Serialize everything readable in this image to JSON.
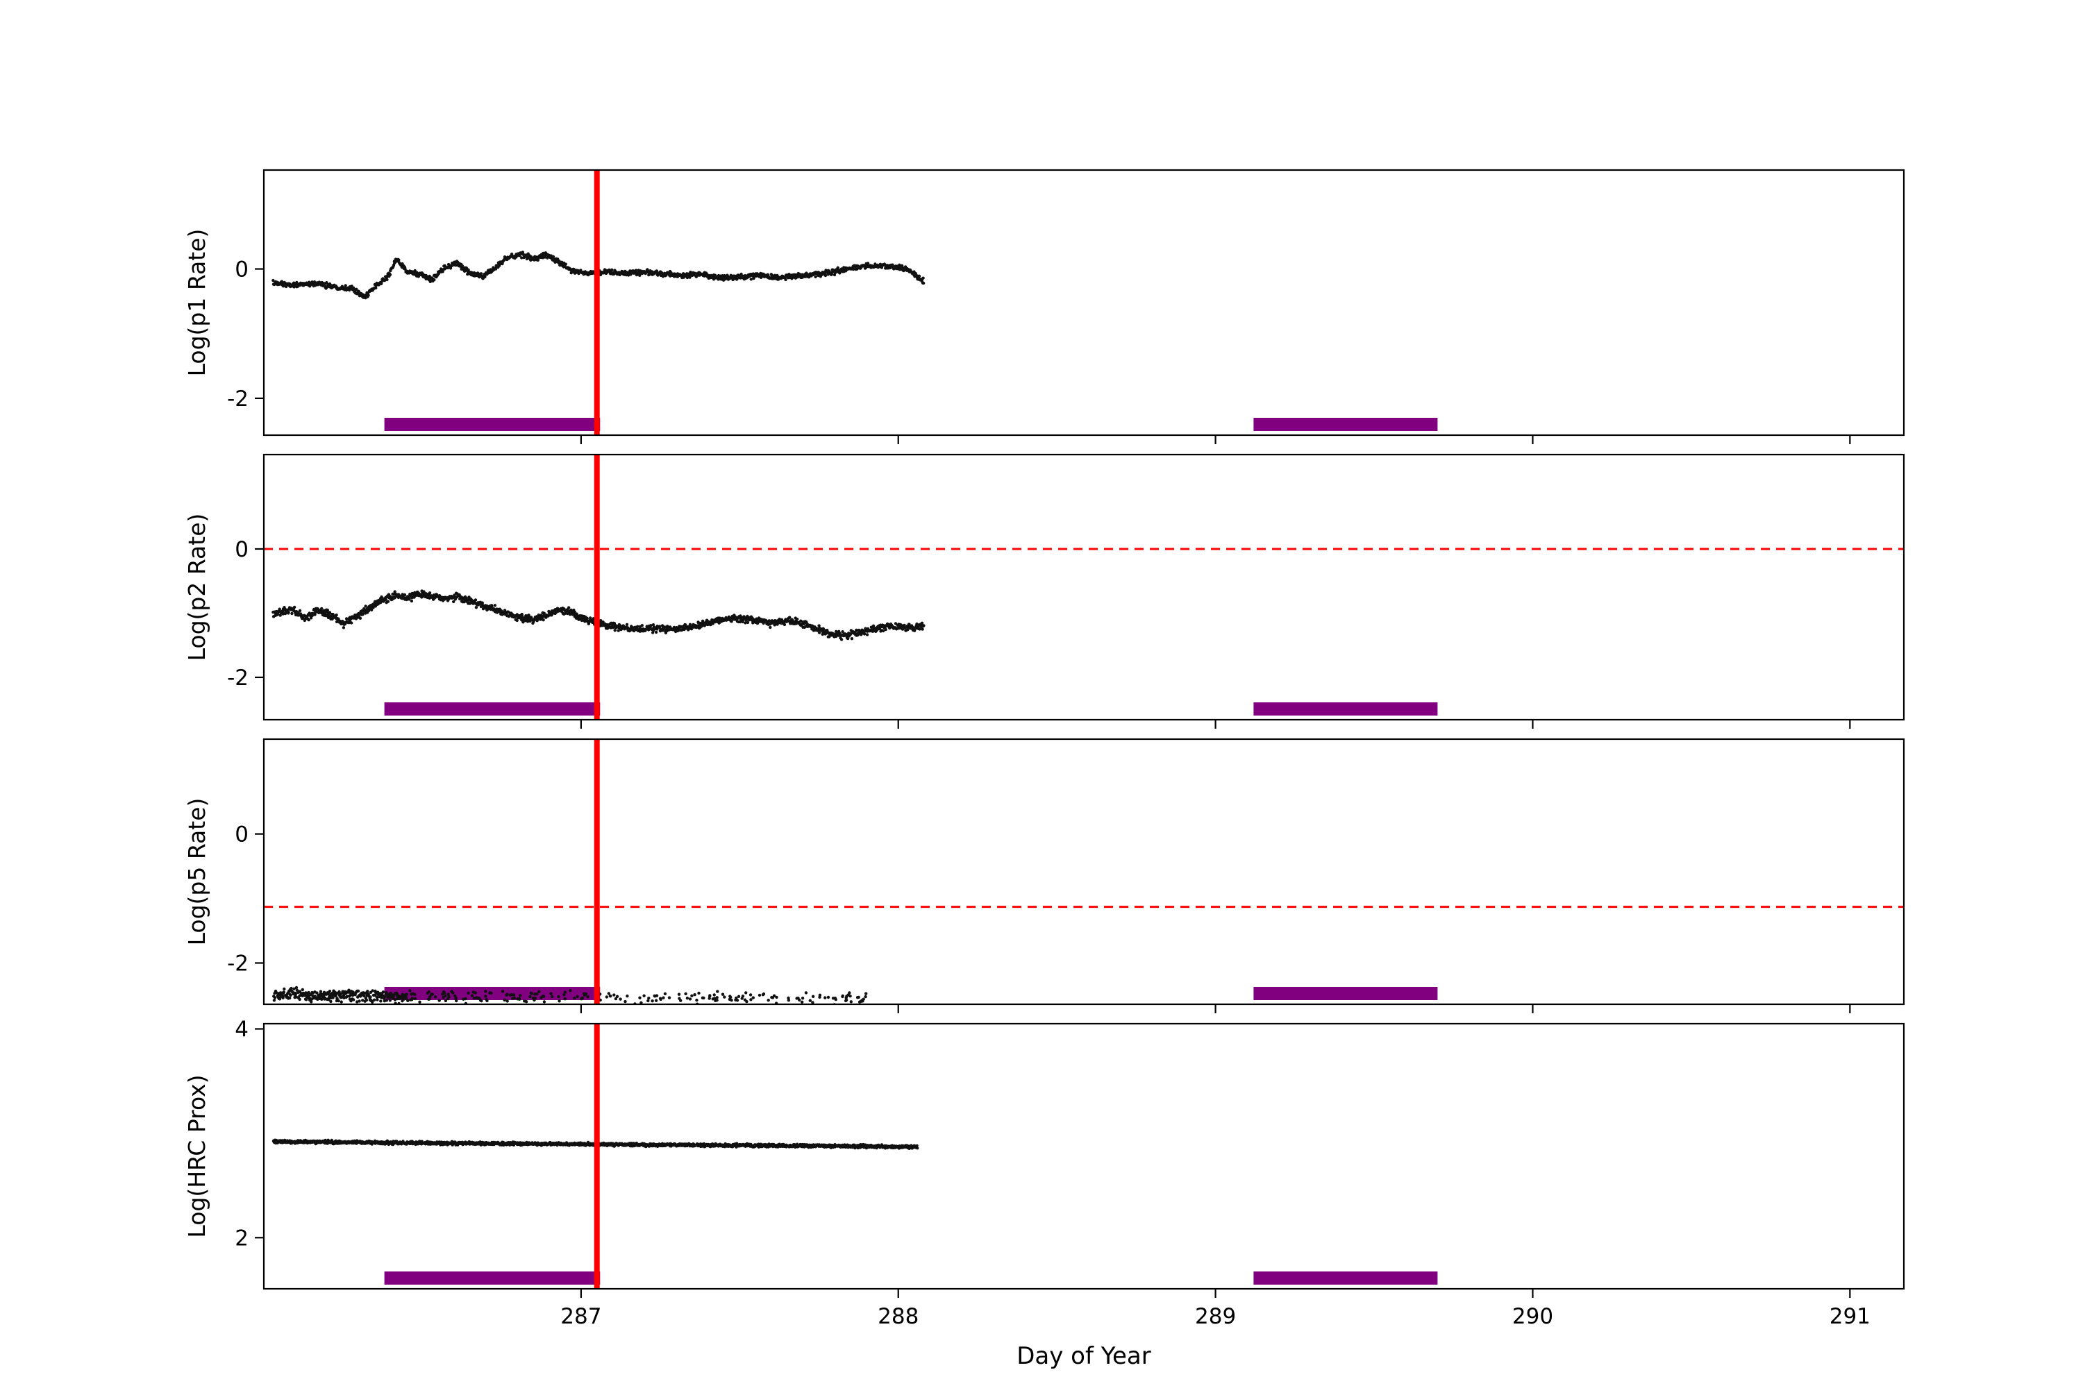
{
  "chart_data": {
    "type": "scatter",
    "title": "",
    "xlabel": "Day of Year",
    "x_range": [
      286.0,
      291.17
    ],
    "x_ticks": [
      287,
      288,
      289,
      290,
      291
    ],
    "grid": false,
    "legend": "none",
    "colors": {
      "data": "#111111",
      "event_line": "#ff0000",
      "threshold_line": "#ff0000",
      "band": "#800080",
      "frame": "#000000"
    },
    "vline": {
      "x": 287.05
    },
    "bands": {
      "intervals": [
        [
          286.38,
          287.06
        ],
        [
          289.12,
          289.7
        ]
      ]
    },
    "panels": [
      {
        "id": "p1",
        "ylabel": "Log(p1 Rate)",
        "y_range": [
          -2.57,
          1.53
        ],
        "y_ticks": [
          0,
          -2
        ],
        "show_x_labels": false,
        "series": [
          {
            "name": "p1-rate",
            "noise": 0.022,
            "samples": 1400,
            "dropout": 0,
            "marker_r": 2.2,
            "keypoints": [
              [
                286.03,
                -0.22
              ],
              [
                286.1,
                -0.25
              ],
              [
                286.16,
                -0.22
              ],
              [
                286.22,
                -0.27
              ],
              [
                286.28,
                -0.3
              ],
              [
                286.32,
                -0.44
              ],
              [
                286.35,
                -0.28
              ],
              [
                286.39,
                -0.12
              ],
              [
                286.42,
                0.16
              ],
              [
                286.45,
                -0.04
              ],
              [
                286.49,
                -0.08
              ],
              [
                286.53,
                -0.16
              ],
              [
                286.57,
                0.02
              ],
              [
                286.61,
                0.08
              ],
              [
                286.65,
                -0.06
              ],
              [
                286.69,
                -0.12
              ],
              [
                286.73,
                0.02
              ],
              [
                286.77,
                0.18
              ],
              [
                286.81,
                0.22
              ],
              [
                286.85,
                0.16
              ],
              [
                286.89,
                0.22
              ],
              [
                286.93,
                0.1
              ],
              [
                286.97,
                -0.02
              ],
              [
                287.02,
                -0.06
              ],
              [
                287.08,
                -0.05
              ],
              [
                287.14,
                -0.07
              ],
              [
                287.2,
                -0.05
              ],
              [
                287.26,
                -0.08
              ],
              [
                287.32,
                -0.1
              ],
              [
                287.38,
                -0.08
              ],
              [
                287.44,
                -0.14
              ],
              [
                287.5,
                -0.12
              ],
              [
                287.56,
                -0.1
              ],
              [
                287.62,
                -0.13
              ],
              [
                287.68,
                -0.11
              ],
              [
                287.74,
                -0.08
              ],
              [
                287.8,
                -0.04
              ],
              [
                287.86,
                0.02
              ],
              [
                287.92,
                0.05
              ],
              [
                287.98,
                0.04
              ],
              [
                288.03,
                0.0
              ],
              [
                288.08,
                -0.2
              ]
            ]
          }
        ]
      },
      {
        "id": "p2",
        "ylabel": "Log(p2 Rate)",
        "y_range": [
          -2.66,
          1.47
        ],
        "y_ticks": [
          0,
          -2
        ],
        "show_x_labels": false,
        "hline": {
          "y": 0
        },
        "series": [
          {
            "name": "p2-rate",
            "noise": 0.03,
            "samples": 1400,
            "dropout": 0,
            "marker_r": 2.2,
            "keypoints": [
              [
                286.03,
                -1.0
              ],
              [
                286.09,
                -0.95
              ],
              [
                286.13,
                -1.08
              ],
              [
                286.17,
                -0.95
              ],
              [
                286.21,
                -1.03
              ],
              [
                286.25,
                -1.17
              ],
              [
                286.29,
                -1.05
              ],
              [
                286.33,
                -0.93
              ],
              [
                286.37,
                -0.8
              ],
              [
                286.41,
                -0.73
              ],
              [
                286.45,
                -0.76
              ],
              [
                286.49,
                -0.7
              ],
              [
                286.53,
                -0.73
              ],
              [
                286.57,
                -0.78
              ],
              [
                286.61,
                -0.74
              ],
              [
                286.65,
                -0.82
              ],
              [
                286.69,
                -0.88
              ],
              [
                286.73,
                -0.95
              ],
              [
                286.77,
                -1.02
              ],
              [
                286.81,
                -1.07
              ],
              [
                286.85,
                -1.1
              ],
              [
                286.89,
                -1.03
              ],
              [
                286.93,
                -0.96
              ],
              [
                286.97,
                -0.99
              ],
              [
                287.02,
                -1.1
              ],
              [
                287.07,
                -1.18
              ],
              [
                287.12,
                -1.22
              ],
              [
                287.18,
                -1.25
              ],
              [
                287.24,
                -1.24
              ],
              [
                287.3,
                -1.25
              ],
              [
                287.36,
                -1.2
              ],
              [
                287.42,
                -1.12
              ],
              [
                287.48,
                -1.07
              ],
              [
                287.54,
                -1.1
              ],
              [
                287.6,
                -1.15
              ],
              [
                287.66,
                -1.12
              ],
              [
                287.72,
                -1.2
              ],
              [
                287.78,
                -1.31
              ],
              [
                287.83,
                -1.35
              ],
              [
                287.88,
                -1.3
              ],
              [
                287.93,
                -1.24
              ],
              [
                287.98,
                -1.2
              ],
              [
                288.03,
                -1.22
              ],
              [
                288.08,
                -1.2
              ]
            ]
          }
        ]
      },
      {
        "id": "p5",
        "ylabel": "Log(p5 Rate)",
        "y_range": [
          -2.64,
          1.47
        ],
        "y_ticks": [
          0,
          -2
        ],
        "show_x_labels": false,
        "hline": {
          "y": -1.13
        },
        "series": [
          {
            "name": "p5-rate-dense",
            "noise": 0.05,
            "samples": 340,
            "dropout": 0.1,
            "marker_r": 2.2,
            "keypoints": [
              [
                286.03,
                -2.5
              ],
              [
                286.45,
                -2.52
              ]
            ]
          },
          {
            "name": "p5-rate-sparse",
            "noise": 0.05,
            "samples": 1100,
            "dropout": 0.82,
            "marker_r": 2.2,
            "keypoints": [
              [
                286.45,
                -2.52
              ],
              [
                287.9,
                -2.55
              ]
            ]
          }
        ]
      },
      {
        "id": "hrc",
        "ylabel": "Log(HRC Prox)",
        "y_range": [
          1.51,
          4.05
        ],
        "y_ticks": [
          4,
          2
        ],
        "show_x_labels": true,
        "series": [
          {
            "name": "hrc-prox",
            "noise": 0.008,
            "samples": 2400,
            "dropout": 0,
            "marker_r": 2.0,
            "keypoints": [
              [
                286.03,
                2.92
              ],
              [
                286.6,
                2.905
              ],
              [
                287.2,
                2.89
              ],
              [
                287.7,
                2.88
              ],
              [
                288.06,
                2.87
              ]
            ]
          }
        ]
      }
    ]
  }
}
